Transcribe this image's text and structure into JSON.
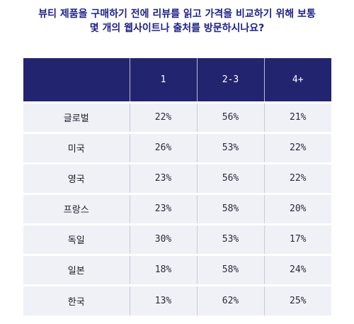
{
  "title_lines": [
    "뷰티 제품을 구매하기 전에 리뷰를 읽고 가격을 비교하기 위해 보통",
    "몇 개의 웹사이트나 출처를 방문하시나요?"
  ],
  "colors": {
    "title": "#1f2288",
    "header_bg": "#23246f",
    "header_text": "#ffffff",
    "cell_bg": "#eff1f7"
  },
  "chart_data": {
    "type": "table",
    "title": "뷰티 제품을 구매하기 전에 리뷰를 읽고 가격을 비교하기 위해 보통 몇 개의 웹사이트나 출처를 방문하시나요?",
    "columns": [
      "",
      "1",
      "2-3",
      "4+"
    ],
    "rows": [
      {
        "label": "글로벌",
        "values": [
          "22%",
          "56%",
          "21%"
        ]
      },
      {
        "label": "미국",
        "values": [
          "26%",
          "53%",
          "22%"
        ]
      },
      {
        "label": "영국",
        "values": [
          "23%",
          "56%",
          "22%"
        ]
      },
      {
        "label": "프랑스",
        "values": [
          "23%",
          "58%",
          "20%"
        ]
      },
      {
        "label": "독일",
        "values": [
          "30%",
          "53%",
          "17%"
        ]
      },
      {
        "label": "일본",
        "values": [
          "18%",
          "58%",
          "24%"
        ]
      },
      {
        "label": "한국",
        "values": [
          "13%",
          "62%",
          "25%"
        ]
      }
    ]
  }
}
